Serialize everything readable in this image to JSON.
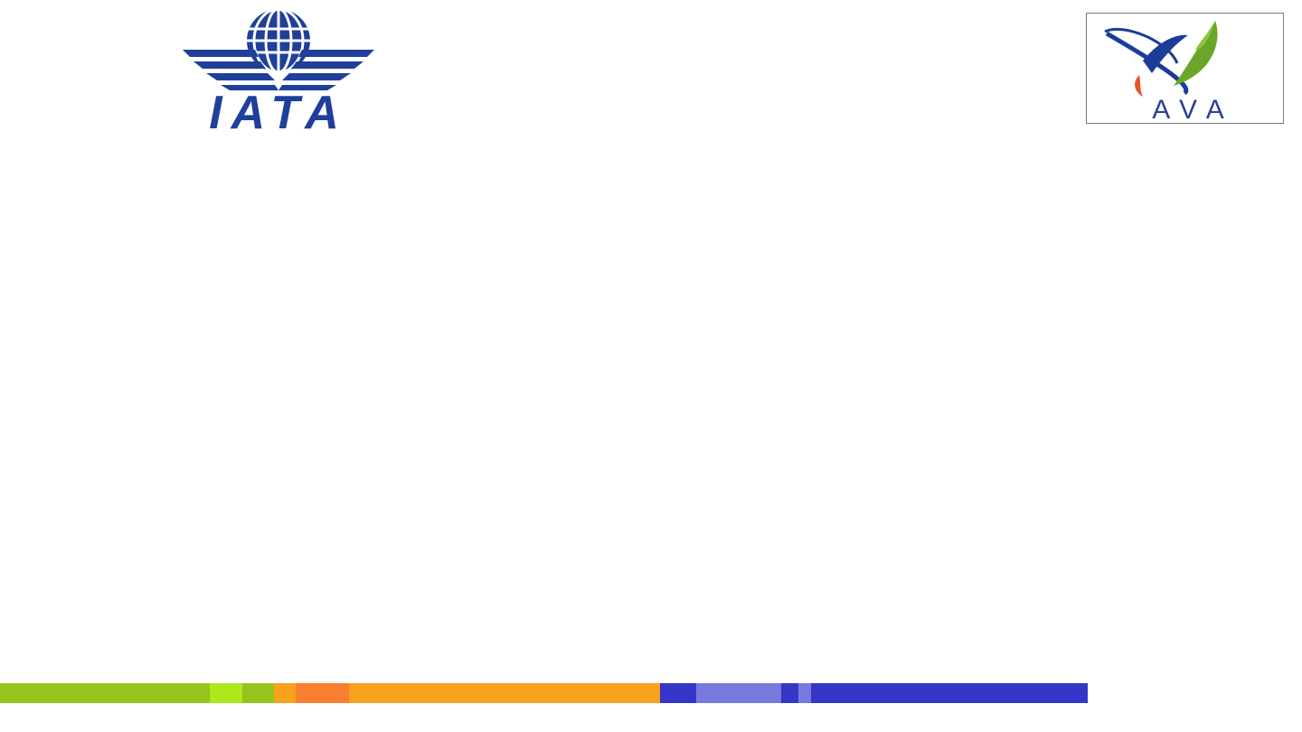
{
  "slide": {
    "logos": {
      "iata": {
        "text": "IATA",
        "color": "#1f3f99",
        "icon": "iata-globe-wings-logo"
      },
      "ava": {
        "text": "AVA",
        "text_color": "#2d3f9b",
        "swoosh_colors": [
          "#1c3c9a",
          "#6aa629",
          "#e8562a"
        ],
        "icon": "ava-leaf-swoosh-logo"
      }
    },
    "footer_bar": {
      "segments": [
        {
          "color": "#96c31d",
          "fraction": 0.193
        },
        {
          "color": "#aee71c",
          "fraction": 0.03
        },
        {
          "color": "#96c31d",
          "fraction": 0.029
        },
        {
          "color": "#f7a11d",
          "fraction": 0.02
        },
        {
          "color": "#f97e2f",
          "fraction": 0.049
        },
        {
          "color": "#f7a11d",
          "fraction": 0.286
        },
        {
          "color": "#3535c8",
          "fraction": 0.033
        },
        {
          "color": "#7879dc",
          "fraction": 0.078
        },
        {
          "color": "#3535c8",
          "fraction": 0.016
        },
        {
          "color": "#7879dc",
          "fraction": 0.012
        },
        {
          "color": "#3535c8",
          "fraction": 0.254
        }
      ]
    }
  }
}
